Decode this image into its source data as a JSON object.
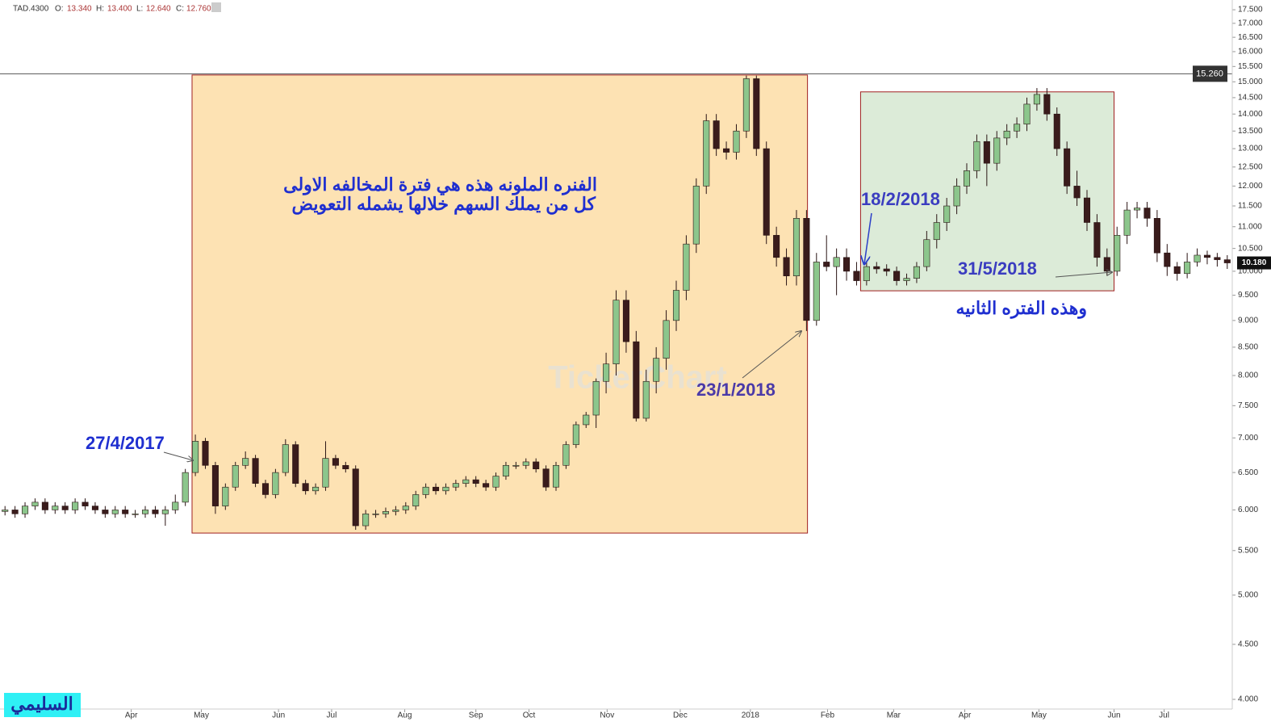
{
  "header": {
    "symbol": "TAD.4300",
    "fields": [
      {
        "label": "O:",
        "value": "13.340"
      },
      {
        "label": "H:",
        "value": "13.400"
      },
      {
        "label": "L:",
        "value": "12.640"
      },
      {
        "label": "C:",
        "value": "12.760"
      }
    ]
  },
  "chart_data": {
    "type": "candlestick",
    "log_scale": true,
    "categories": [
      null,
      null,
      null,
      null,
      null,
      null,
      null,
      null,
      null,
      null,
      null,
      null,
      null,
      null,
      null,
      null,
      null,
      null,
      null,
      null,
      null,
      null,
      null,
      null,
      null,
      null,
      null,
      null,
      null,
      null,
      null,
      null,
      null,
      null,
      null,
      null,
      null,
      null,
      null,
      null,
      null,
      null,
      null,
      null,
      null,
      null,
      null,
      null,
      null,
      null,
      null,
      null,
      null,
      null,
      null,
      null,
      null,
      null,
      null,
      null,
      null,
      null,
      null,
      null,
      null,
      null,
      null,
      null,
      null,
      null,
      null,
      null,
      null,
      null,
      null,
      null,
      null,
      null,
      null,
      null,
      null,
      null,
      null,
      null,
      null,
      null,
      null,
      null,
      null,
      null,
      null,
      null,
      null,
      null,
      null,
      null,
      null,
      null,
      null,
      null,
      null,
      null,
      null,
      null,
      null,
      null,
      null,
      null,
      null,
      null,
      null,
      null,
      null,
      null,
      null,
      null,
      null,
      null,
      null,
      null,
      null,
      null,
      null
    ],
    "open": [
      5.98,
      6,
      5.95,
      6.05,
      6.1,
      6,
      6.05,
      6,
      6.1,
      6.05,
      6,
      5.95,
      6,
      5.95,
      5.95,
      6,
      5.95,
      6,
      6.1,
      6.5,
      6.95,
      6.6,
      6.05,
      6.3,
      6.6,
      6.7,
      6.35,
      6.2,
      6.5,
      6.9,
      6.35,
      6.25,
      6.3,
      6.7,
      6.6,
      6.55,
      5.8,
      5.95,
      5.95,
      5.98,
      6,
      6.05,
      6.2,
      6.3,
      6.25,
      6.3,
      6.35,
      6.4,
      6.35,
      6.3,
      6.45,
      6.6,
      6.6,
      6.65,
      6.55,
      6.3,
      6.6,
      6.9,
      7.2,
      7.35,
      7.9,
      8.2,
      9.4,
      8.6,
      7.3,
      7.9,
      8.3,
      9,
      9.6,
      10.6,
      12,
      13.8,
      13,
      12.9,
      13.5,
      15.1,
      13,
      10.8,
      10.3,
      9.9,
      11.2,
      9,
      10.2,
      10.1,
      10.3,
      10,
      9.8,
      10.1,
      10.05,
      10,
      9.8,
      9.85,
      10.1,
      10.7,
      11.1,
      11.5,
      12,
      12.4,
      13.2,
      12.6,
      13.3,
      13.5,
      13.7,
      14.3,
      14.6,
      14,
      13,
      12,
      11.7,
      11.1,
      10.3,
      10,
      10.8,
      11.4,
      11.45,
      11.2,
      10.4,
      10.1,
      9.95,
      10.2,
      10.35,
      10.3,
      10.25
    ],
    "high": [
      6.05,
      6.05,
      6.1,
      6.15,
      6.15,
      6.1,
      6.1,
      6.15,
      6.15,
      6.1,
      6.05,
      6.05,
      6.05,
      6,
      6.05,
      6.05,
      6.05,
      6.2,
      6.55,
      7.05,
      7,
      6.65,
      6.35,
      6.65,
      6.8,
      6.75,
      6.4,
      6.55,
      6.98,
      6.95,
      6.4,
      6.35,
      6.95,
      6.75,
      6.65,
      6.6,
      6,
      6,
      6.03,
      6.05,
      6.1,
      6.25,
      6.35,
      6.35,
      6.35,
      6.4,
      6.45,
      6.45,
      6.4,
      6.5,
      6.65,
      6.65,
      6.7,
      6.7,
      6.6,
      6.65,
      6.95,
      7.25,
      7.4,
      7.95,
      8.4,
      9.6,
      9.6,
      8.8,
      8.1,
      8.5,
      9.2,
      9.8,
      10.8,
      12.2,
      14,
      14,
      13.2,
      13.7,
      15.2,
      15.2,
      13.2,
      11,
      10.5,
      11.4,
      11.4,
      10.4,
      10.8,
      10.5,
      10.5,
      10.2,
      10.2,
      10.2,
      10.15,
      10.1,
      9.95,
      10.2,
      10.9,
      11.3,
      11.7,
      12.2,
      12.6,
      13.4,
      13.4,
      13.5,
      13.7,
      13.9,
      14.5,
      14.8,
      14.8,
      14.2,
      13.2,
      12.4,
      11.9,
      11.3,
      10.5,
      11,
      11.6,
      11.6,
      11.6,
      11.4,
      10.6,
      10.2,
      10.4,
      10.5,
      10.45,
      10.4,
      10.35
    ],
    "low": [
      5.93,
      5.9,
      5.9,
      6,
      5.95,
      5.95,
      5.95,
      5.95,
      6,
      5.95,
      5.9,
      5.9,
      5.9,
      5.9,
      5.9,
      5.9,
      5.8,
      5.95,
      6.05,
      6.45,
      6.55,
      5.95,
      6,
      6.25,
      6.55,
      6.3,
      6.15,
      6.15,
      6.45,
      6.3,
      6.2,
      6.2,
      6.25,
      6.55,
      6.5,
      5.75,
      5.75,
      5.9,
      5.9,
      5.93,
      5.95,
      6,
      6.15,
      6.2,
      6.2,
      6.25,
      6.3,
      6.3,
      6.25,
      6.25,
      6.4,
      6.55,
      6.55,
      6.5,
      6.25,
      6.25,
      6.55,
      6.85,
      7.15,
      7.15,
      7.7,
      8,
      8.4,
      7.25,
      7.25,
      7.7,
      8.1,
      8.8,
      9.4,
      10.4,
      11.8,
      12.8,
      12.7,
      12.7,
      13.3,
      12.8,
      10.6,
      10.1,
      9.7,
      9.7,
      8.8,
      8.9,
      10,
      9.5,
      9.8,
      9.7,
      9.7,
      9.95,
      9.9,
      9.7,
      9.7,
      9.75,
      10,
      10.5,
      10.9,
      11.3,
      11.8,
      12.2,
      12,
      12.4,
      13.1,
      13.3,
      13.5,
      14.1,
      13.8,
      12.8,
      11.8,
      11.5,
      10.9,
      10.1,
      9.9,
      9.9,
      10.6,
      11.2,
      11,
      10.2,
      9.9,
      9.8,
      9.85,
      10.1,
      10.15,
      10.1,
      10.05
    ],
    "close": [
      6,
      5.95,
      6.05,
      6.1,
      6,
      6.05,
      6,
      6.1,
      6.05,
      6,
      5.95,
      6,
      5.95,
      5.95,
      6,
      5.95,
      6,
      6.1,
      6.5,
      6.95,
      6.6,
      6.05,
      6.3,
      6.6,
      6.7,
      6.35,
      6.2,
      6.5,
      6.9,
      6.35,
      6.25,
      6.3,
      6.7,
      6.6,
      6.55,
      5.8,
      5.95,
      5.95,
      5.98,
      6,
      6.05,
      6.2,
      6.3,
      6.25,
      6.3,
      6.35,
      6.4,
      6.35,
      6.3,
      6.45,
      6.6,
      6.6,
      6.65,
      6.55,
      6.3,
      6.6,
      6.9,
      7.2,
      7.35,
      7.9,
      8.2,
      9.4,
      8.6,
      7.3,
      7.9,
      8.3,
      9,
      9.6,
      10.6,
      12,
      13.8,
      13,
      12.9,
      13.5,
      15.1,
      13,
      10.8,
      10.3,
      9.9,
      11.2,
      9,
      10.2,
      10.1,
      10.3,
      10,
      9.8,
      10.1,
      10.05,
      10,
      9.8,
      9.85,
      10.1,
      10.7,
      11.1,
      11.5,
      12,
      12.4,
      13.2,
      12.6,
      13.3,
      13.5,
      13.7,
      14.3,
      14.6,
      14,
      13,
      12,
      11.7,
      11.1,
      10.3,
      10,
      10.8,
      11.4,
      11.45,
      11.2,
      10.4,
      10.1,
      9.95,
      10.2,
      10.35,
      10.3,
      10.25,
      10.18
    ],
    "up_color": "#8cc68c",
    "down_color": "#3a1c1c",
    "xlim": [
      -0.5,
      122.5
    ],
    "xticks": [
      {
        "value": 12.6,
        "label": "Apr"
      },
      {
        "value": 19.6,
        "label": "May"
      },
      {
        "value": 27.3,
        "label": "Jun"
      },
      {
        "value": 32.6,
        "label": "Jul"
      },
      {
        "value": 39.9,
        "label": "Aug"
      },
      {
        "value": 47.0,
        "label": "Sep"
      },
      {
        "value": 52.3,
        "label": "Oct"
      },
      {
        "value": 60.1,
        "label": "Nov"
      },
      {
        "value": 67.4,
        "label": "Dec"
      },
      {
        "value": 74.4,
        "label": "2018"
      },
      {
        "value": 82.1,
        "label": "Feb"
      },
      {
        "value": 88.7,
        "label": "Mar"
      },
      {
        "value": 95.8,
        "label": "Apr"
      },
      {
        "value": 103.2,
        "label": "May"
      },
      {
        "value": 110.7,
        "label": "Jun"
      },
      {
        "value": 115.7,
        "label": "Jul"
      }
    ],
    "ylim": [
      3.918,
      17.87
    ],
    "yticks": [
      {
        "value": 4,
        "label": "4.000"
      },
      {
        "value": 4.5,
        "label": "4.500"
      },
      {
        "value": 5,
        "label": "5.000"
      },
      {
        "value": 5.5,
        "label": "5.500"
      },
      {
        "value": 6,
        "label": "6.000"
      },
      {
        "value": 6.5,
        "label": "6.500"
      },
      {
        "value": 7,
        "label": "7.000"
      },
      {
        "value": 7.5,
        "label": "7.500"
      },
      {
        "value": 8,
        "label": "8.000"
      },
      {
        "value": 8.5,
        "label": "8.500"
      },
      {
        "value": 9,
        "label": "9.000"
      },
      {
        "value": 9.5,
        "label": "9.500"
      },
      {
        "value": 10,
        "label": "10.000"
      },
      {
        "value": 10.5,
        "label": "10.500"
      },
      {
        "value": 11,
        "label": "11.000"
      },
      {
        "value": 11.5,
        "label": "11.500"
      },
      {
        "value": 12,
        "label": "12.000"
      },
      {
        "value": 12.5,
        "label": "12.500"
      },
      {
        "value": 13,
        "label": "13.000"
      },
      {
        "value": 13.5,
        "label": "13.500"
      },
      {
        "value": 14,
        "label": "14.000"
      },
      {
        "value": 14.5,
        "label": "14.500"
      },
      {
        "value": 15,
        "label": "15.000"
      },
      {
        "value": 15.5,
        "label": "15.500"
      },
      {
        "value": 16,
        "label": "16.000"
      },
      {
        "value": 16.5,
        "label": "16.500"
      },
      {
        "value": 17,
        "label": "17.000"
      },
      {
        "value": 17.5,
        "label": "17.500"
      }
    ],
    "price_line": {
      "value": 15.26,
      "label": "15.260"
    },
    "last_price": {
      "value": 10.18,
      "label": "10.180"
    },
    "highlights": [
      {
        "x": [
          18.67,
          80.1
        ],
        "y": [
          5.71,
          15.22
        ],
        "color": "#fde2b3"
      },
      {
        "x": [
          85.4,
          110.7
        ],
        "y": [
          9.59,
          14.68
        ],
        "color": "#dcebd8"
      }
    ],
    "annotations": {
      "note_line1": "الفنره الملونه هذه هي فترة المخالفه الاولى",
      "note_line2": "كل من يملك السهم خلالها يشمله التعويض",
      "date1": "27/4/2017",
      "date2": "23/1/2018",
      "date3": "18/2/2018",
      "date4": "31/5/2018",
      "note2": "وهذه الفتره الثانيه"
    },
    "watermark": "TickerChart",
    "author": "السليمي"
  }
}
